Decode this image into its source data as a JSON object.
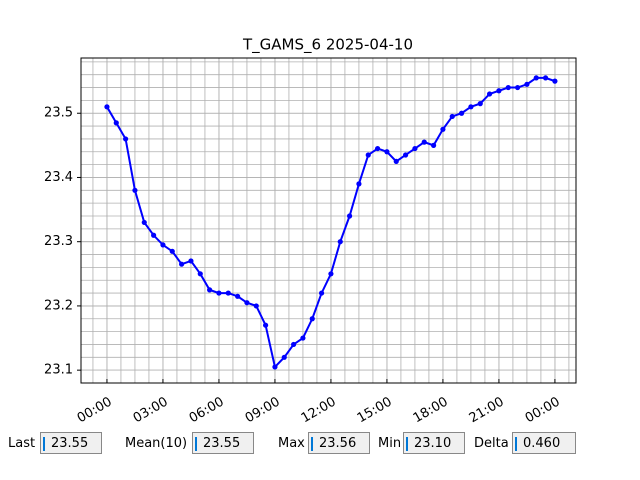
{
  "chart_data": {
    "type": "line",
    "title": "T_GAMS_6 2025-04-10",
    "x": [
      0,
      0.5,
      1,
      1.5,
      2,
      2.5,
      3,
      3.5,
      4,
      4.5,
      5,
      5.5,
      6,
      6.5,
      7,
      7.5,
      8,
      8.5,
      9,
      9.5,
      10,
      10.5,
      11,
      11.5,
      12,
      12.5,
      13,
      13.5,
      14,
      14.5,
      15,
      15.5,
      16,
      16.5,
      17,
      17.5,
      18,
      18.5,
      19,
      19.5,
      20,
      20.5,
      21,
      21.5,
      22,
      22.5,
      23,
      23.5,
      24
    ],
    "series": [
      {
        "name": "T_GAMS_6",
        "color": "#0000ff",
        "values": [
          23.51,
          23.485,
          23.46,
          23.38,
          23.33,
          23.31,
          23.295,
          23.285,
          23.265,
          23.27,
          23.25,
          23.225,
          23.22,
          23.22,
          23.215,
          23.205,
          23.2,
          23.17,
          23.105,
          23.12,
          23.14,
          23.15,
          23.18,
          23.22,
          23.25,
          23.3,
          23.34,
          23.39,
          23.435,
          23.445,
          23.44,
          23.425,
          23.435,
          23.445,
          23.455,
          23.45,
          23.475,
          23.495,
          23.5,
          23.51,
          23.515,
          23.53,
          23.535,
          23.54,
          23.54,
          23.545,
          23.555,
          23.555,
          23.55
        ]
      }
    ],
    "xlim": [
      -1.39,
      25.13
    ],
    "ylim": [
      23.08,
      23.586
    ],
    "xticks": [
      {
        "value": 0,
        "label": "00:00"
      },
      {
        "value": 3,
        "label": "03:00"
      },
      {
        "value": 6,
        "label": "06:00"
      },
      {
        "value": 9,
        "label": "09:00"
      },
      {
        "value": 12,
        "label": "12:00"
      },
      {
        "value": 15,
        "label": "15:00"
      },
      {
        "value": 18,
        "label": "18:00"
      },
      {
        "value": 21,
        "label": "21:00"
      },
      {
        "value": 24,
        "label": "00:00"
      }
    ],
    "yticks": [
      23.1,
      23.2,
      23.3,
      23.4,
      23.5
    ],
    "grid": true,
    "minor_grid": true
  },
  "stats": [
    {
      "label": "Last",
      "value": "23.55"
    },
    {
      "label": "Mean(10)",
      "value": "23.55"
    },
    {
      "label": "Max",
      "value": "23.56"
    },
    {
      "label": "Min",
      "value": "23.10"
    },
    {
      "label": "Delta",
      "value": "0.460"
    }
  ]
}
